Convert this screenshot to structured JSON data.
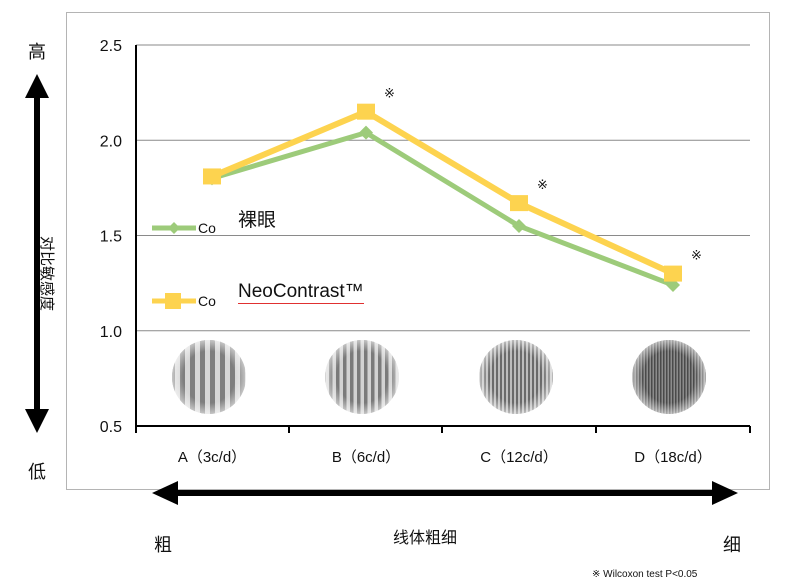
{
  "chart_data": {
    "type": "line",
    "categories": [
      "A（3c/d）",
      "B（6c/d）",
      "C（12c/d）",
      "D（18c/d）"
    ],
    "series": [
      {
        "name": "裸眼",
        "color": "#9dcb7a",
        "marker": "diamond",
        "values": [
          1.8,
          2.04,
          1.55,
          1.24
        ],
        "legend_prefix": "Co"
      },
      {
        "name": "NeoContrast™",
        "color": "#fdd34f",
        "marker": "square",
        "values": [
          1.81,
          2.15,
          1.67,
          1.3
        ],
        "legend_prefix": "Co"
      }
    ],
    "ylim": [
      0.5,
      2.5
    ],
    "yticks": [
      "0.5",
      "1.0",
      "1.5",
      "2.0",
      "2.5"
    ],
    "grid": true,
    "significance_marker": "※",
    "significant_categories": [
      1,
      2,
      3
    ],
    "ylabel": "对比敏感度",
    "y_top_label": "高",
    "y_bottom_label": "低",
    "xlabel": "线体粗细",
    "x_left_label": "粗",
    "x_right_label": "细",
    "footnote": "※ Wilcoxon test P<0.05"
  }
}
